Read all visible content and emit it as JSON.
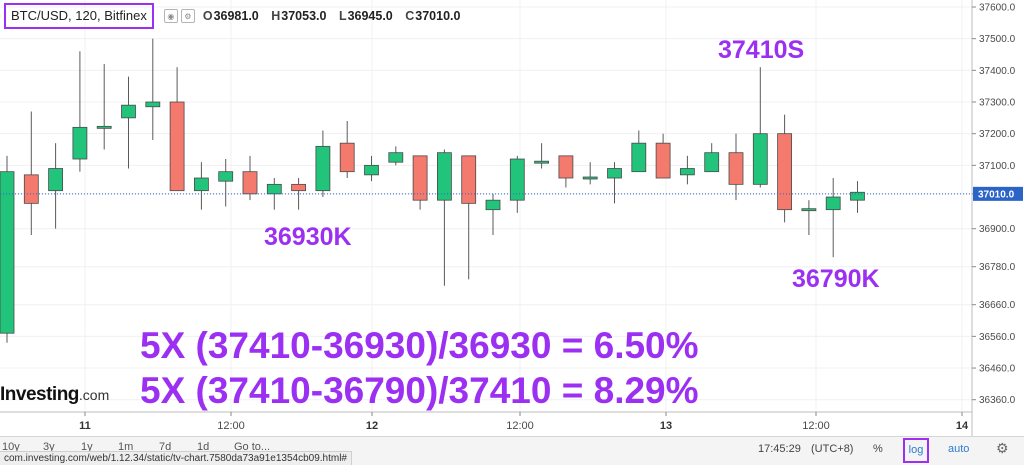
{
  "legend": {
    "symbol": "BTC/USD, 120, Bitfinex",
    "open": "36981.0",
    "high": "37053.0",
    "low": "36945.0",
    "close": "37010.0",
    "open_key": "O",
    "high_key": "H",
    "low_key": "L",
    "close_key": "C"
  },
  "annotations": {
    "high_label": "37410S",
    "low_label_1": "36930K",
    "low_label_2": "36790K",
    "formula_1": "5X (37410-36930)/36930 = 6.50%",
    "formula_2": "5X (37410-36790)/37410 = 8.29%"
  },
  "logo": {
    "text": "Investing",
    "suffix": ".com"
  },
  "toolbar": {
    "ranges": [
      "10y",
      "3y",
      "1y",
      "1m",
      "7d",
      "1d",
      "Go to..."
    ],
    "time": "17:45:29",
    "timezone": "(UTC+8)",
    "percent": "%",
    "log": "log",
    "auto": "auto",
    "status_url": "com.investing.com/web/1.12.34/static/tv-chart.7580da73a91e1354cb09.html#"
  },
  "colors": {
    "up": "#22c37a",
    "down": "#f47a6e",
    "accent": "#9b30f2",
    "last_price_line": "#2a64c9"
  },
  "icons": {
    "gear": "gear-icon",
    "legend_eye": "eye-icon",
    "legend_settings": "settings-icon"
  },
  "chart_data": {
    "type": "candlestick",
    "symbol": "BTC/USD",
    "interval": "120",
    "exchange": "Bitfinex",
    "y_axis": {
      "ticks": [
        36360,
        36460,
        36560,
        36660,
        36780,
        36900,
        37010,
        37100,
        37200,
        37300,
        37400,
        37500,
        37600
      ],
      "tick_labels": [
        "36360.0",
        "36460.0",
        "36560.0",
        "36660.0",
        "36780.0",
        "36900.0",
        "37010.0",
        "37100.0",
        "37200.0",
        "37300.0",
        "37400.0",
        "37500.0",
        "37600.0"
      ],
      "position": "right"
    },
    "x_axis": {
      "tick_labels": [
        "11",
        "12:00",
        "12",
        "12:00",
        "13",
        "12:00",
        "14"
      ],
      "bold_labels": [
        "11",
        "12",
        "13",
        "14"
      ]
    },
    "last_price": 37010.0,
    "last_price_label": "37010.0",
    "candles": [
      {
        "o": 36570,
        "h": 37130,
        "l": 36540,
        "c": 37080
      },
      {
        "o": 37070,
        "h": 37270,
        "l": 36880,
        "c": 36980
      },
      {
        "o": 37020,
        "h": 37170,
        "l": 36900,
        "c": 37090
      },
      {
        "o": 37120,
        "h": 37460,
        "l": 37080,
        "c": 37220
      },
      {
        "o": 37220,
        "h": 37420,
        "l": 37150,
        "c": 37220
      },
      {
        "o": 37250,
        "h": 37380,
        "l": 37090,
        "c": 37290
      },
      {
        "o": 37285,
        "h": 37500,
        "l": 37180,
        "c": 37300
      },
      {
        "o": 37300,
        "h": 37410,
        "l": 37020,
        "c": 37020
      },
      {
        "o": 37020,
        "h": 37110,
        "l": 36960,
        "c": 37060
      },
      {
        "o": 37050,
        "h": 37120,
        "l": 36970,
        "c": 37080
      },
      {
        "o": 37080,
        "h": 37130,
        "l": 36990,
        "c": 37010
      },
      {
        "o": 37010,
        "h": 37060,
        "l": 36960,
        "c": 37040
      },
      {
        "o": 37040,
        "h": 37060,
        "l": 36960,
        "c": 37020
      },
      {
        "o": 37020,
        "h": 37210,
        "l": 37000,
        "c": 37160
      },
      {
        "o": 37170,
        "h": 37240,
        "l": 37060,
        "c": 37080
      },
      {
        "o": 37070,
        "h": 37130,
        "l": 37050,
        "c": 37100
      },
      {
        "o": 37110,
        "h": 37160,
        "l": 37100,
        "c": 37140
      },
      {
        "o": 37130,
        "h": 37130,
        "l": 36960,
        "c": 36990
      },
      {
        "o": 36990,
        "h": 37150,
        "l": 36720,
        "c": 37140
      },
      {
        "o": 37130,
        "h": 37130,
        "l": 36740,
        "c": 36980
      },
      {
        "o": 36960,
        "h": 37010,
        "l": 36880,
        "c": 36990
      },
      {
        "o": 36990,
        "h": 37130,
        "l": 36950,
        "c": 37120
      },
      {
        "o": 37110,
        "h": 37170,
        "l": 37090,
        "c": 37110
      },
      {
        "o": 37130,
        "h": 37130,
        "l": 37030,
        "c": 37060
      },
      {
        "o": 37060,
        "h": 37110,
        "l": 37040,
        "c": 37060
      },
      {
        "o": 37060,
        "h": 37110,
        "l": 36980,
        "c": 37090
      },
      {
        "o": 37080,
        "h": 37210,
        "l": 37080,
        "c": 37170
      },
      {
        "o": 37170,
        "h": 37200,
        "l": 37060,
        "c": 37060
      },
      {
        "o": 37070,
        "h": 37130,
        "l": 37040,
        "c": 37090
      },
      {
        "o": 37080,
        "h": 37170,
        "l": 37080,
        "c": 37140
      },
      {
        "o": 37140,
        "h": 37200,
        "l": 36990,
        "c": 37040
      },
      {
        "o": 37040,
        "h": 37410,
        "l": 37030,
        "c": 37200
      },
      {
        "o": 37200,
        "h": 37260,
        "l": 36920,
        "c": 36960
      },
      {
        "o": 36960,
        "h": 36990,
        "l": 36880,
        "c": 36960
      },
      {
        "o": 36960,
        "h": 37060,
        "l": 36810,
        "c": 37000
      },
      {
        "o": 36990,
        "h": 37050,
        "l": 36950,
        "c": 37015
      }
    ]
  }
}
